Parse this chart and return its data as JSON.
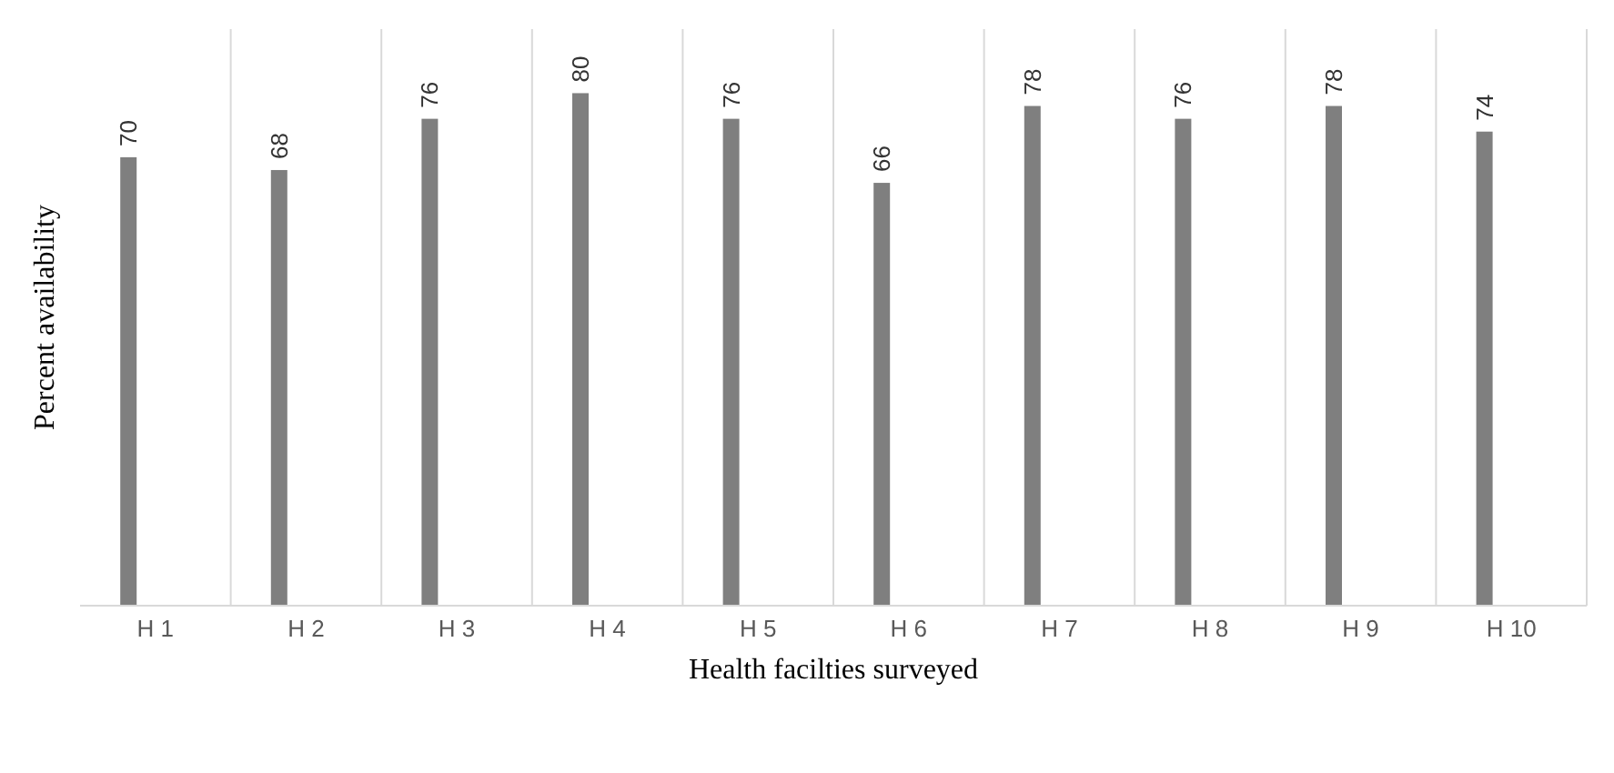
{
  "chart_data": {
    "type": "bar",
    "xlabel": "Health facilties surveyed",
    "ylabel": "Percent availability",
    "categories": [
      "H 1",
      "H 2",
      "H 3",
      "H 4",
      "H 5",
      "H 6",
      "H 7",
      "H 8",
      "H 9",
      "H 10"
    ],
    "values": [
      70,
      68,
      76,
      80,
      76,
      66,
      78,
      76,
      78,
      74
    ],
    "color": "#7f7f7f",
    "ylim": [
      0,
      90
    ],
    "grid": "x",
    "data_labels": true
  }
}
